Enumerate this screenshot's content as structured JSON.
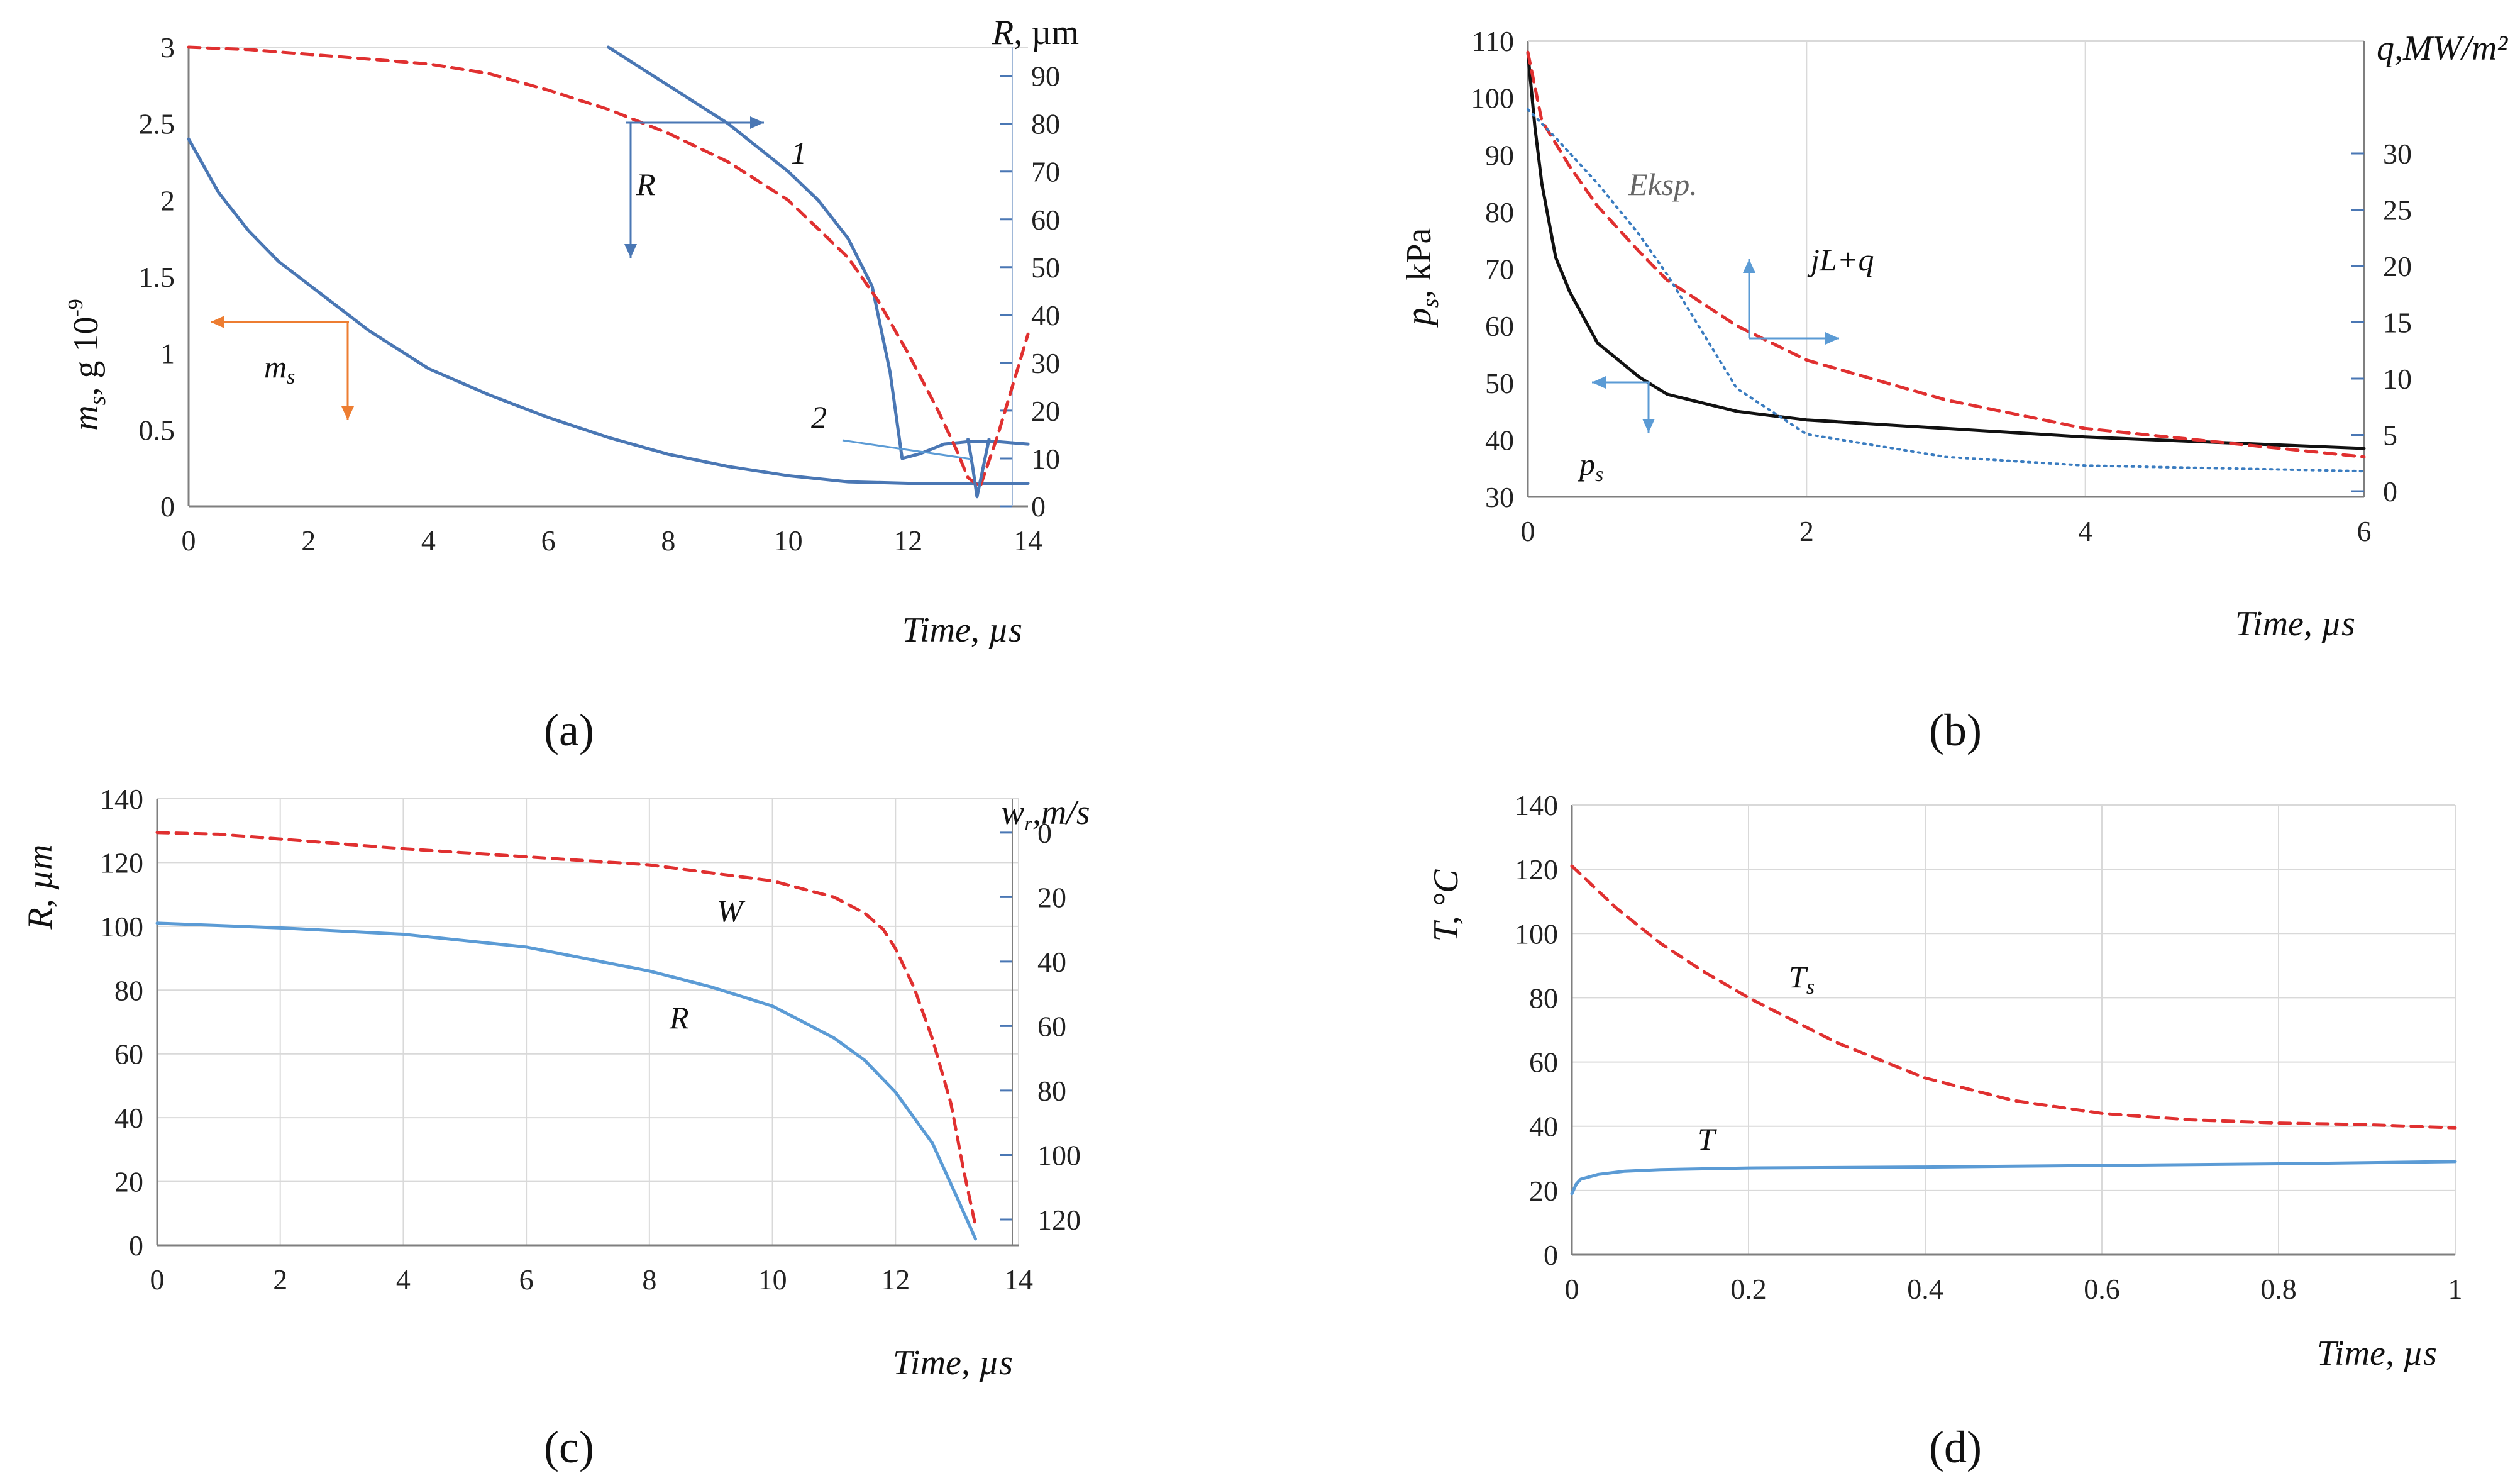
{
  "chart_data": [
    {
      "panel": "(a)",
      "type": "line",
      "xlabel": "Time, µs",
      "x_ticks": [
        "0",
        "2",
        "4",
        "6",
        "8",
        "10",
        "12",
        "14"
      ],
      "xlim": [
        0,
        14
      ],
      "ylabel_left_main": "m",
      "ylabel_left_sub": "s",
      "ylabel_left_unit": ",  g 10",
      "ylabel_left_exp": "-9",
      "yleft_ticks": [
        "0",
        "0.5",
        "1",
        "1.5",
        "2",
        "2.5",
        "3"
      ],
      "yleft_lim": [
        0,
        3
      ],
      "ylabel_right_main": "R",
      "ylabel_right_unit": ", µm",
      "yright_ticks": [
        "0",
        "10",
        "20",
        "30",
        "40",
        "50",
        "60",
        "70",
        "80",
        "90"
      ],
      "yright_lim": [
        0,
        96
      ],
      "series": [
        {
          "name": "ms",
          "axis": "left",
          "color": "#4a77b4",
          "style": "solid",
          "x": [
            0,
            0.5,
            1,
            1.5,
            2,
            3,
            4,
            5,
            6,
            7,
            8,
            9,
            10,
            11,
            12,
            13,
            14
          ],
          "y": [
            2.4,
            2.05,
            1.8,
            1.6,
            1.45,
            1.15,
            0.9,
            0.73,
            0.58,
            0.45,
            0.34,
            0.26,
            0.2,
            0.16,
            0.15,
            0.15,
            0.15
          ]
        },
        {
          "name": "R (1)",
          "axis": "right",
          "color": "#4a77b4",
          "style": "solid",
          "x": [
            7,
            8,
            9,
            10,
            10.5,
            11,
            11.4,
            11.7,
            11.9,
            12.2,
            12.6,
            13,
            13.5,
            14
          ],
          "y": [
            96,
            88,
            80,
            70,
            64,
            56,
            46,
            28,
            10,
            11,
            13,
            13.5,
            13.5,
            13
          ]
        },
        {
          "name": "dashed",
          "axis": "right",
          "color": "#e03030",
          "style": "dashed",
          "x": [
            0,
            1,
            2,
            3,
            4,
            5,
            6,
            7,
            8,
            9,
            10,
            11,
            11.5,
            12,
            12.5,
            12.8,
            13,
            13.2,
            13.5,
            14
          ],
          "y": [
            96,
            95.5,
            94.5,
            93.5,
            92.5,
            90.5,
            87,
            83,
            78,
            72,
            64,
            52,
            43,
            32,
            20,
            12,
            6,
            4,
            15,
            36
          ]
        },
        {
          "name": "2",
          "axis": "right",
          "color": "#4a77b4",
          "style": "solid",
          "x": [
            13.0,
            13.08,
            13.15,
            13.25,
            13.35
          ],
          "y": [
            14,
            8,
            2,
            8,
            14
          ]
        }
      ],
      "annotations": [
        "1",
        "2",
        "R",
        "ms"
      ]
    },
    {
      "panel": "(b)",
      "type": "line",
      "xlabel": "Time, µs",
      "x_ticks": [
        "0",
        "2",
        "4",
        "6"
      ],
      "xlim": [
        0,
        6
      ],
      "ylabel_left_main": "p",
      "ylabel_left_sub": "s",
      "ylabel_left_unit": ",  kPa",
      "yleft_ticks": [
        "30",
        "40",
        "50",
        "60",
        "70",
        "80",
        "90",
        "100",
        "110"
      ],
      "yleft_lim": [
        30,
        110
      ],
      "ylabel_right": "q,MW/m²",
      "yright_ticks": [
        "0",
        "5",
        "10",
        "15",
        "20",
        "25",
        "30"
      ],
      "yright_lim": [
        -0.5,
        40
      ],
      "series": [
        {
          "name": "ps",
          "axis": "left",
          "color": "#111111",
          "style": "solid",
          "x": [
            0,
            0.05,
            0.1,
            0.2,
            0.3,
            0.5,
            0.8,
            1,
            1.5,
            2,
            3,
            4,
            5,
            6
          ],
          "y": [
            108,
            95,
            85,
            72,
            66,
            57,
            51,
            48,
            45,
            43.5,
            42,
            40.5,
            39.5,
            38.5
          ]
        },
        {
          "name": "jL+q",
          "axis": "left",
          "color": "#e03030",
          "style": "dashed",
          "x": [
            0,
            0.1,
            0.3,
            0.5,
            0.8,
            1,
            1.5,
            2,
            3,
            4,
            5,
            6
          ],
          "y": [
            108,
            96,
            88,
            81,
            73,
            68,
            60,
            54,
            47,
            42,
            39.5,
            37
          ]
        },
        {
          "name": "Eksp.",
          "axis": "left",
          "color": "#3a7cc0",
          "style": "dotted",
          "x": [
            0,
            0.2,
            0.5,
            0.8,
            1,
            1.2,
            1.5,
            2,
            3,
            4,
            5,
            6
          ],
          "y": [
            98,
            93,
            85,
            76,
            69,
            61,
            49,
            41,
            37,
            35.5,
            35,
            34.5
          ]
        }
      ],
      "annotations": [
        "Eksp.",
        "jL+q",
        "ps"
      ]
    },
    {
      "panel": "(c)",
      "type": "line",
      "xlabel": "Time, µs",
      "x_ticks": [
        "0",
        "2",
        "4",
        "6",
        "8",
        "10",
        "12",
        "14"
      ],
      "xlim": [
        0,
        14
      ],
      "ylabel_left": "R, µm",
      "yleft_ticks": [
        "0",
        "20",
        "40",
        "60",
        "80",
        "100",
        "120",
        "140"
      ],
      "yleft_lim": [
        0,
        140
      ],
      "ylabel_right_main": "w",
      "ylabel_right_sub": "r",
      "ylabel_right_unit": ",m/s",
      "yright_ticks": [
        "0",
        "20",
        "40",
        "60",
        "80",
        "100",
        "120"
      ],
      "yright_inverted": true,
      "yright_lim": [
        -10.5,
        128
      ],
      "series": [
        {
          "name": "R",
          "axis": "left",
          "color": "#5b9bd5",
          "style": "solid",
          "x": [
            0,
            2,
            4,
            6,
            8,
            9,
            10,
            11,
            11.5,
            12,
            12.6,
            13,
            13.3
          ],
          "y": [
            101,
            99.5,
            97.5,
            93.5,
            86,
            81,
            75,
            65,
            58,
            48,
            32,
            15,
            2
          ]
        },
        {
          "name": "W",
          "axis": "right",
          "color": "#e03030",
          "style": "dashed",
          "x": [
            0,
            1,
            2,
            4,
            6,
            8,
            9,
            10,
            11,
            11.5,
            11.8,
            12,
            12.3,
            12.6,
            12.9,
            13.1,
            13.3
          ],
          "y": [
            0,
            0.5,
            2,
            5,
            7.5,
            10,
            12.5,
            15,
            20,
            25,
            30,
            36,
            48,
            64,
            84,
            104,
            122
          ]
        }
      ],
      "annotations": [
        "W",
        "R"
      ]
    },
    {
      "panel": "(d)",
      "type": "line",
      "xlabel": "Time, µs",
      "x_ticks": [
        "0",
        "0.2",
        "0.4",
        "0.6",
        "0.8",
        "1"
      ],
      "xlim": [
        0,
        1
      ],
      "ylabel_left": "T, °C",
      "yleft_ticks": [
        "0",
        "20",
        "40",
        "60",
        "80",
        "100",
        "120",
        "140"
      ],
      "yleft_lim": [
        0,
        140
      ],
      "series": [
        {
          "name": "Ts",
          "axis": "left",
          "color": "#e03030",
          "style": "dashed",
          "x": [
            0,
            0.05,
            0.1,
            0.15,
            0.2,
            0.3,
            0.4,
            0.5,
            0.6,
            0.7,
            0.8,
            0.9,
            1
          ],
          "y": [
            121,
            108,
            97,
            88,
            80,
            66,
            55,
            48,
            44,
            42,
            41,
            40.5,
            39.5
          ]
        },
        {
          "name": "T",
          "axis": "left",
          "color": "#5b9bd5",
          "style": "solid",
          "x": [
            0,
            0.005,
            0.01,
            0.03,
            0.06,
            0.1,
            0.2,
            0.4,
            0.6,
            0.8,
            1
          ],
          "y": [
            19,
            22,
            23.5,
            25,
            26,
            26.5,
            27,
            27.3,
            27.8,
            28.3,
            29
          ]
        }
      ],
      "annotations": [
        "Ts",
        "T"
      ]
    }
  ],
  "panel_labels": [
    "(a)",
    "(b)",
    "(c)",
    "(d)"
  ],
  "annotations": {
    "a_curve1": "1",
    "a_curve2": "2",
    "a_R": "R",
    "a_ms_main": "m",
    "a_ms_sub": "s",
    "b_eksp": "Eksp.",
    "b_jlq": "jL+q",
    "b_ps_main": "p",
    "b_ps_sub": "s",
    "c_W": "W",
    "c_R": "R",
    "d_Ts_main": "T",
    "d_Ts_sub": "s",
    "d_T": "T"
  },
  "colors": {
    "blue": "#4a77b4",
    "lightblue": "#5b9bd5",
    "red": "#e03030",
    "orange": "#ed7d31",
    "grid": "#d9d9d9",
    "axis": "#7f7f7f"
  }
}
